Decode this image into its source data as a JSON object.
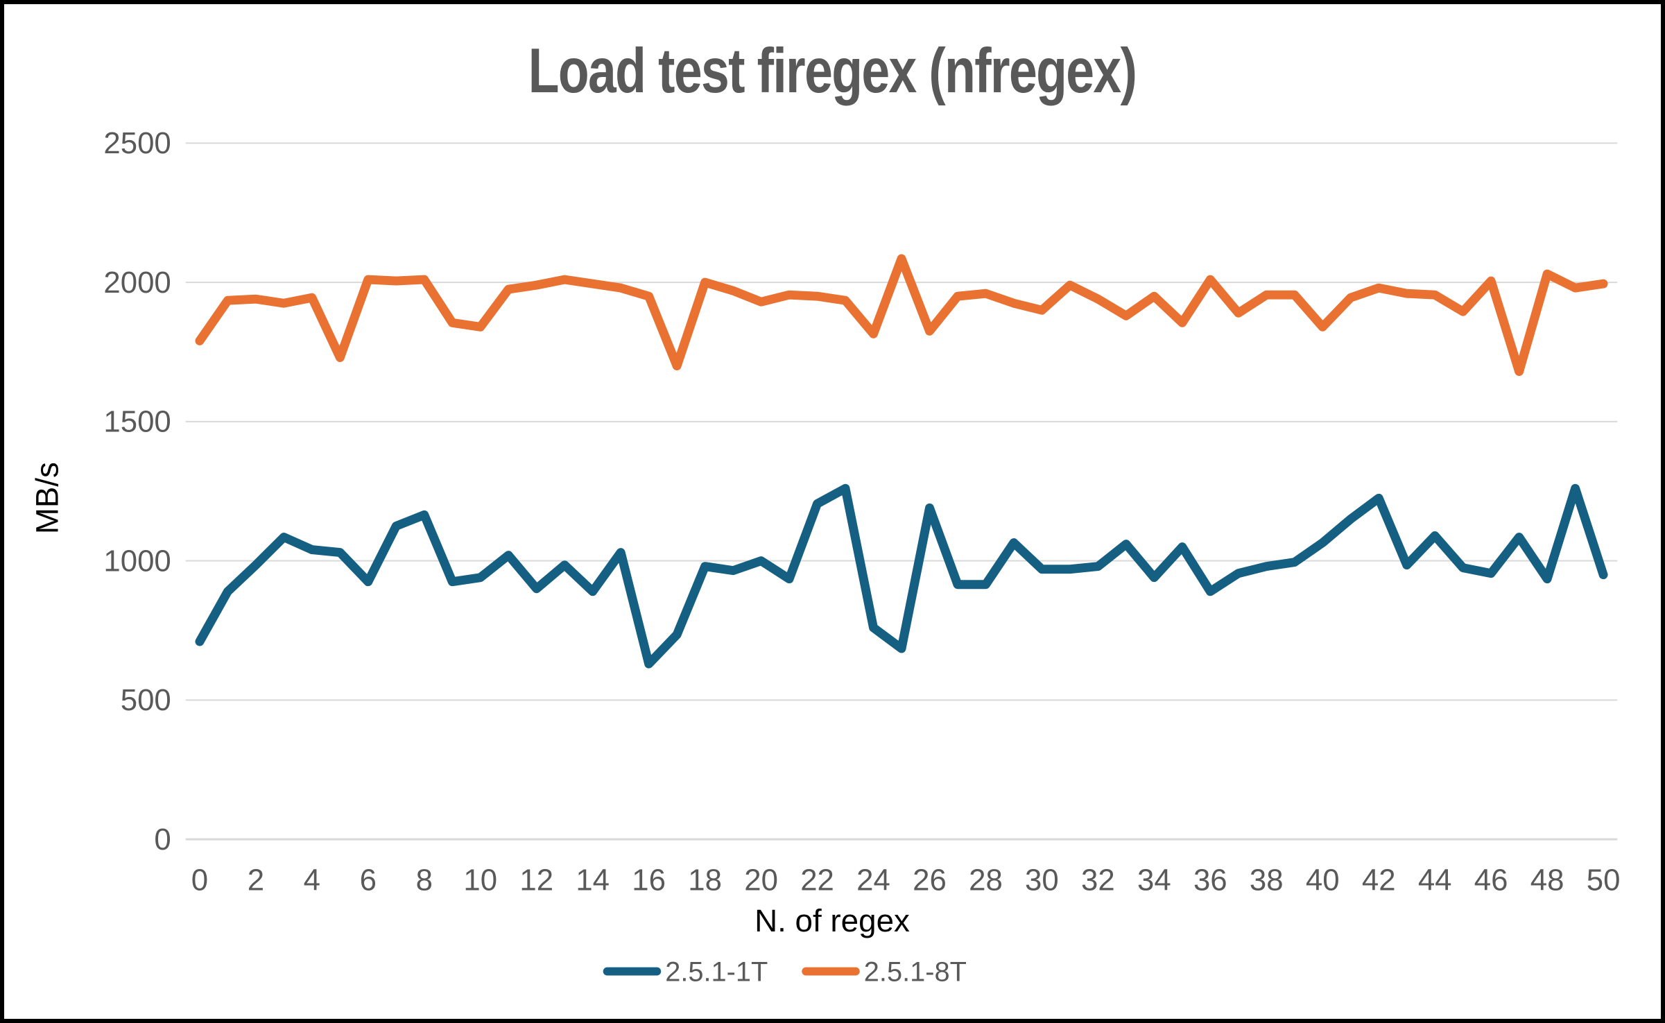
{
  "frame": {
    "background": "#ffffff",
    "border_color": "#000000",
    "gridline_color": "#d9d9d9",
    "label_color": "#595959",
    "axis_title_color": "#000000"
  },
  "chart_data": {
    "type": "line",
    "title": "Load test firegex (nfregex)",
    "xlabel": "N. of regex",
    "ylabel": "MB/s",
    "xlim": [
      0,
      50
    ],
    "ylim": [
      0,
      2500
    ],
    "y_ticks": [
      0,
      500,
      1000,
      1500,
      2000,
      2500
    ],
    "x_ticks": [
      0,
      2,
      4,
      6,
      8,
      10,
      12,
      14,
      16,
      18,
      20,
      22,
      24,
      26,
      28,
      30,
      32,
      34,
      36,
      38,
      40,
      42,
      44,
      46,
      48,
      50
    ],
    "grid": "horizontal",
    "legend_position": "bottom-center",
    "series": [
      {
        "name": "2.5.1-1T",
        "color": "#156082",
        "values": [
          710,
          890,
          985,
          1085,
          1040,
          1030,
          925,
          1125,
          1165,
          925,
          940,
          1020,
          900,
          985,
          890,
          1030,
          630,
          735,
          980,
          965,
          1000,
          935,
          1205,
          1260,
          760,
          685,
          1190,
          915,
          915,
          1065,
          970,
          970,
          980,
          1060,
          940,
          1050,
          890,
          955,
          980,
          995,
          1065,
          1150,
          1225,
          985,
          1090,
          975,
          955,
          1085,
          935,
          1260,
          950
        ]
      },
      {
        "name": "2.5.1-8T",
        "color": "#E97132",
        "values": [
          1790,
          1935,
          1940,
          1925,
          1945,
          1730,
          2010,
          2005,
          2010,
          1855,
          1840,
          1975,
          1990,
          2010,
          1995,
          1980,
          1950,
          1700,
          2000,
          1970,
          1930,
          1955,
          1950,
          1935,
          1815,
          2085,
          1825,
          1950,
          1960,
          1925,
          1900,
          1990,
          1940,
          1880,
          1950,
          1855,
          2010,
          1890,
          1955,
          1955,
          1840,
          1945,
          1980,
          1960,
          1955,
          1895,
          2005,
          1680,
          2030,
          1980,
          1995
        ]
      }
    ]
  }
}
